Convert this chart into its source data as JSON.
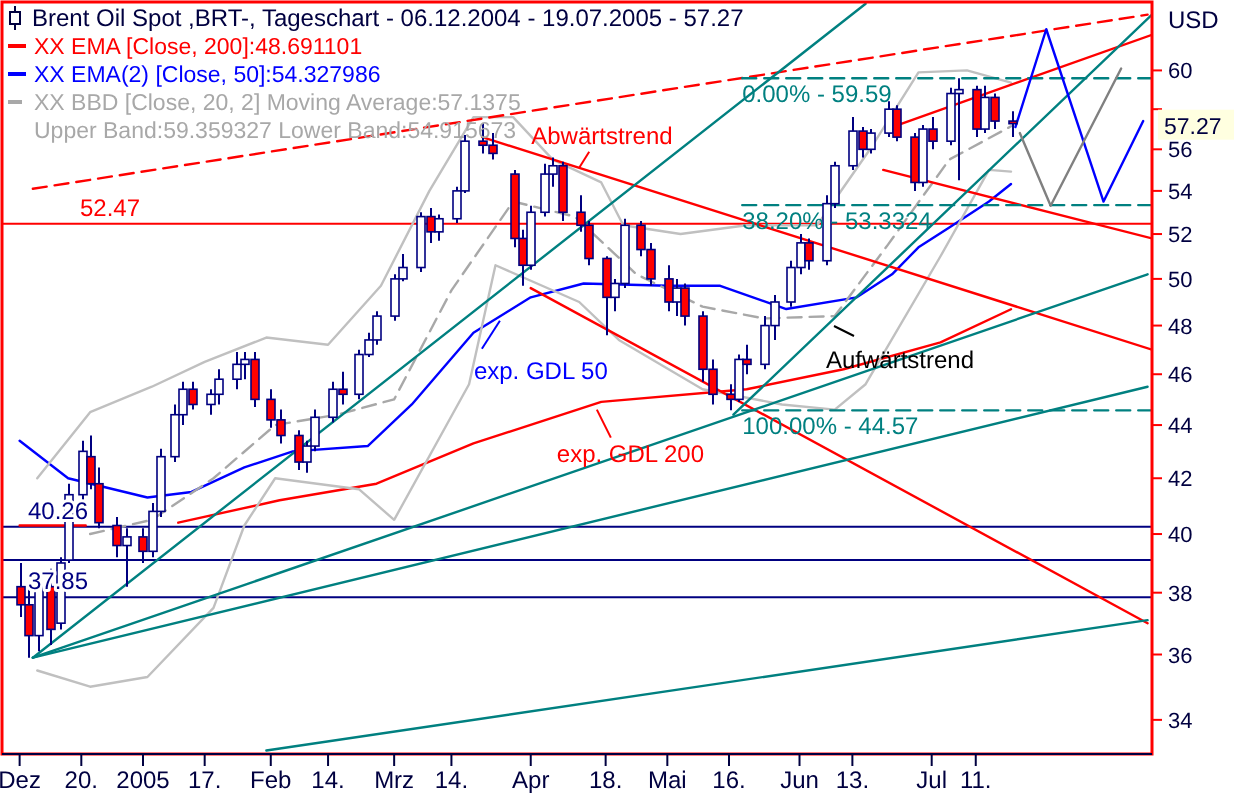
{
  "chart_data": {
    "type": "candlestick",
    "title": "Brent Oil Spot ,BRT-, Tageschart - 06.12.2004 - 19.07.2005 - 57.27",
    "ylabel": "USD",
    "color": "#000080",
    "log": true,
    "legend": "top left",
    "xlim": [
      "2004-12-02",
      "2005-08-20"
    ],
    "ylim": [
      33.0,
      63.7
    ],
    "xticks": [
      {
        "value": "2004-12-06",
        "label": "Dez"
      },
      {
        "value": "2004-12-20",
        "label": "20."
      },
      {
        "value": "2005-01-03",
        "label": "2005"
      },
      {
        "value": "2005-01-17",
        "label": "17."
      },
      {
        "value": "2005-02-01",
        "label": "Feb"
      },
      {
        "value": "2005-02-14",
        "label": "14."
      },
      {
        "value": "2005-03-01",
        "label": "Mrz"
      },
      {
        "value": "2005-03-14",
        "label": "14."
      },
      {
        "value": "2005-04-01",
        "label": "Apr"
      },
      {
        "value": "2005-04-18",
        "label": "18."
      },
      {
        "value": "2005-05-02",
        "label": "Mai"
      },
      {
        "value": "2005-05-16",
        "label": "16."
      },
      {
        "value": "2005-06-01",
        "label": "Jun"
      },
      {
        "value": "2005-06-13",
        "label": "13."
      },
      {
        "value": "2005-07-01",
        "label": "Jul"
      },
      {
        "value": "2005-07-11",
        "label": "11."
      }
    ],
    "yticks": [
      34,
      36,
      38,
      40,
      42,
      44,
      46,
      48,
      50,
      52,
      54,
      56,
      {
        "value": 58,
        "label": null
      },
      60
    ],
    "x": [
      "2004-12-06",
      "2004-12-08",
      "2004-12-10",
      "2004-12-13",
      "2004-12-15",
      "2004-12-17",
      "2004-12-20",
      "2004-12-22",
      "2004-12-24",
      "2004-12-28",
      "2004-12-30",
      "2005-01-03",
      "2005-01-05",
      "2005-01-07",
      "2005-01-10",
      "2005-01-12",
      "2005-01-14",
      "2005-01-18",
      "2005-01-20",
      "2005-01-24",
      "2005-01-26",
      "2005-01-28",
      "2005-02-01",
      "2005-02-03",
      "2005-02-07",
      "2005-02-09",
      "2005-02-11",
      "2005-02-15",
      "2005-02-17",
      "2005-02-21",
      "2005-02-23",
      "2005-02-25",
      "2005-03-01",
      "2005-03-03",
      "2005-03-07",
      "2005-03-09",
      "2005-03-11",
      "2005-03-15",
      "2005-03-17",
      "2005-03-21",
      "2005-03-23",
      "2005-03-28",
      "2005-03-30",
      "2005-04-01",
      "2005-04-04",
      "2005-04-06",
      "2005-04-08",
      "2005-04-12",
      "2005-04-14",
      "2005-04-18",
      "2005-04-20",
      "2005-04-22",
      "2005-04-26",
      "2005-04-28",
      "2005-05-02",
      "2005-05-04",
      "2005-05-06",
      "2005-05-10",
      "2005-05-12",
      "2005-05-16",
      "2005-05-18",
      "2005-05-20",
      "2005-05-24",
      "2005-05-26",
      "2005-05-30",
      "2005-06-01",
      "2005-06-03",
      "2005-06-07",
      "2005-06-09",
      "2005-06-13",
      "2005-06-15",
      "2005-06-17",
      "2005-06-21",
      "2005-06-23",
      "2005-06-27",
      "2005-06-29",
      "2005-07-01",
      "2005-07-05",
      "2005-07-07",
      "2005-07-11",
      "2005-07-13",
      "2005-07-15",
      "2005-07-19"
    ],
    "ohlc": [
      [
        38.2,
        39.0,
        37.2,
        37.6
      ],
      [
        37.6,
        38.2,
        35.9,
        36.6
      ],
      [
        36.6,
        38.6,
        36.1,
        38.2
      ],
      [
        38.2,
        38.8,
        36.3,
        36.8
      ],
      [
        37.0,
        39.2,
        36.8,
        39.0
      ],
      [
        39.1,
        41.8,
        39.0,
        41.4
      ],
      [
        41.4,
        43.4,
        41.2,
        43.0
      ],
      [
        42.8,
        43.6,
        41.6,
        41.8
      ],
      [
        41.8,
        42.4,
        40.2,
        40.4
      ],
      [
        40.3,
        40.6,
        39.2,
        39.6
      ],
      [
        39.6,
        40.2,
        38.2,
        39.9
      ],
      [
        39.9,
        40.2,
        39.0,
        39.4
      ],
      [
        39.4,
        41.1,
        39.2,
        40.8
      ],
      [
        40.8,
        43.1,
        40.6,
        42.8
      ],
      [
        42.8,
        44.8,
        42.6,
        44.4
      ],
      [
        44.4,
        45.7,
        44.0,
        45.4
      ],
      [
        45.4,
        45.7,
        44.6,
        44.8
      ],
      [
        44.8,
        45.4,
        44.4,
        45.2
      ],
      [
        45.2,
        46.2,
        44.8,
        45.8
      ],
      [
        45.8,
        46.9,
        45.4,
        46.4
      ],
      [
        46.4,
        46.9,
        45.8,
        46.6
      ],
      [
        46.6,
        46.9,
        44.7,
        45.0
      ],
      [
        45.0,
        45.4,
        43.9,
        44.2
      ],
      [
        44.2,
        44.6,
        43.3,
        43.6
      ],
      [
        43.6,
        43.8,
        42.3,
        42.6
      ],
      [
        42.6,
        43.4,
        42.2,
        43.2
      ],
      [
        43.2,
        44.6,
        43.0,
        44.3
      ],
      [
        44.3,
        45.7,
        44.1,
        45.4
      ],
      [
        45.4,
        46.1,
        44.8,
        45.2
      ],
      [
        45.2,
        47.0,
        45.0,
        46.8
      ],
      [
        46.8,
        47.7,
        46.7,
        47.4
      ],
      [
        47.4,
        48.6,
        47.2,
        48.4
      ],
      [
        48.4,
        50.2,
        48.2,
        50.0
      ],
      [
        50.0,
        51.1,
        49.9,
        50.5
      ],
      [
        50.5,
        53.0,
        50.3,
        52.8
      ],
      [
        52.8,
        53.2,
        51.6,
        52.1
      ],
      [
        52.1,
        52.9,
        51.7,
        52.7
      ],
      [
        52.7,
        54.2,
        52.5,
        54.0
      ],
      [
        54.0,
        56.7,
        53.9,
        56.4
      ],
      [
        56.4,
        57.3,
        55.8,
        56.2
      ],
      [
        56.2,
        56.8,
        55.5,
        55.8
      ],
      [
        54.8,
        55.0,
        51.4,
        51.8
      ],
      [
        51.8,
        52.2,
        49.7,
        50.6
      ],
      [
        50.6,
        53.3,
        50.4,
        53.0
      ],
      [
        53.0,
        55.3,
        52.8,
        54.8
      ],
      [
        54.8,
        55.6,
        54.2,
        55.2
      ],
      [
        55.2,
        55.4,
        52.6,
        53.0
      ],
      [
        53.0,
        53.8,
        52.1,
        52.4
      ],
      [
        52.4,
        52.6,
        50.6,
        50.9
      ],
      [
        50.9,
        51.0,
        47.6,
        49.2
      ],
      [
        49.2,
        50.0,
        48.6,
        49.8
      ],
      [
        49.8,
        52.7,
        49.6,
        52.4
      ],
      [
        52.4,
        52.6,
        51.0,
        51.3
      ],
      [
        51.3,
        51.6,
        49.7,
        50.0
      ],
      [
        50.0,
        50.6,
        48.6,
        49.0
      ],
      [
        49.0,
        50.0,
        48.4,
        49.6
      ],
      [
        49.6,
        49.8,
        48.0,
        48.4
      ],
      [
        48.4,
        48.6,
        45.7,
        46.2
      ],
      [
        46.2,
        46.6,
        44.8,
        45.2
      ],
      [
        45.2,
        45.6,
        44.57,
        45.0
      ],
      [
        45.0,
        46.8,
        44.9,
        46.6
      ],
      [
        46.6,
        47.2,
        46.0,
        46.4
      ],
      [
        46.4,
        48.4,
        46.2,
        48.0
      ],
      [
        48.0,
        49.3,
        47.4,
        49.0
      ],
      [
        49.0,
        50.8,
        48.8,
        50.5
      ],
      [
        50.5,
        52.0,
        50.2,
        51.6
      ],
      [
        51.6,
        51.8,
        50.4,
        50.8
      ],
      [
        50.8,
        53.8,
        50.6,
        53.4
      ],
      [
        53.4,
        55.4,
        53.2,
        55.2
      ],
      [
        55.2,
        57.6,
        55.0,
        56.9
      ],
      [
        56.9,
        57.1,
        55.6,
        56.0
      ],
      [
        56.0,
        57.0,
        55.8,
        56.8
      ],
      [
        56.8,
        58.4,
        56.6,
        58.0
      ],
      [
        58.0,
        58.2,
        56.4,
        56.6
      ],
      [
        56.6,
        56.8,
        54.0,
        54.4
      ],
      [
        54.4,
        57.2,
        54.2,
        57.0
      ],
      [
        57.0,
        57.6,
        56.0,
        56.4
      ],
      [
        56.4,
        59.1,
        56.2,
        58.8
      ],
      [
        58.8,
        59.59,
        54.5,
        59.0
      ],
      [
        59.0,
        59.2,
        56.6,
        57.0
      ],
      [
        57.0,
        59.2,
        56.8,
        58.6
      ],
      [
        58.6,
        58.8,
        57.0,
        57.4
      ],
      [
        57.4,
        57.9,
        56.6,
        57.27
      ]
    ],
    "series": [
      {
        "type": "line",
        "name": "XX EMA [Close, 200]:48.691101",
        "color": "#ff0000",
        "x": [
          "2004-12-06",
          "2004-12-21",
          "2005-01-01",
          "2005-01-11",
          "2005-02-03",
          "2005-02-25",
          "2005-03-19",
          "2005-04-17",
          "2005-05-20",
          "2005-06-11",
          "2005-07-03",
          "2005-07-19"
        ],
        "values": [
          40.3,
          40.3,
          null,
          40.4,
          41.2,
          41.8,
          43.3,
          44.9,
          45.4,
          46.2,
          47.3,
          48.691101
        ]
      },
      {
        "type": "line",
        "name": "XX EMA(2) [Close, 50]:54.327986",
        "color": "#0000ff",
        "x": [
          "2004-12-06",
          "2004-12-17",
          "2005-01-04",
          "2005-01-14",
          "2005-01-26",
          "2005-02-06",
          "2005-02-23",
          "2005-03-05",
          "2005-03-19",
          "2005-04-01",
          "2005-04-13",
          "2005-05-02",
          "2005-05-14",
          "2005-05-29",
          "2005-06-14",
          "2005-06-22",
          "2005-06-28",
          "2005-07-05",
          "2005-07-14",
          "2005-07-19"
        ],
        "values": [
          43.4,
          42.0,
          41.3,
          41.5,
          42.4,
          43.0,
          43.2,
          44.8,
          47.7,
          49.2,
          49.8,
          49.7,
          49.7,
          48.7,
          49.2,
          50.2,
          51.4,
          52.3,
          53.5,
          54.327986
        ]
      },
      {
        "type": "line",
        "name": "XX BBD [Close, 20, 2] Moving Average:57.1375 Upper Band:59.359327 Lower Band:54.915673",
        "color": "#a8a8a8",
        "line_style": "dashed",
        "x": [
          "2004-12-22",
          "2005-01-05",
          "2005-01-19",
          "2005-02-02",
          "2005-02-16",
          "2005-03-01",
          "2005-03-14",
          "2005-03-28",
          "2005-04-11",
          "2005-04-25",
          "2005-05-10",
          "2005-05-24",
          "2005-06-09",
          "2005-06-21",
          "2005-07-05",
          "2005-07-19"
        ],
        "values": [
          40.0,
          40.5,
          42.0,
          44.0,
          44.4,
          45.0,
          49.5,
          53.5,
          52.8,
          50.2,
          48.8,
          48.3,
          48.4,
          51.5,
          55.5,
          57.1375
        ]
      },
      {
        "type": "line",
        "color": "#c0c0c0",
        "x": [
          "2004-12-10",
          "2004-12-22",
          "2005-01-05",
          "2005-01-17",
          "2005-01-31",
          "2005-02-14",
          "2005-02-26",
          "2005-03-09",
          "2005-03-19",
          "2005-03-28",
          "2005-04-06",
          "2005-04-17",
          "2005-04-22",
          "2005-05-05",
          "2005-05-20",
          "2005-06-05",
          "2005-06-17",
          "2005-06-28",
          "2005-07-09",
          "2005-07-19"
        ],
        "values": [
          42.0,
          44.5,
          45.5,
          46.5,
          47.5,
          47.2,
          49.7,
          54.0,
          57.6,
          57.6,
          55.5,
          54.4,
          52.4,
          52.0,
          52.4,
          52.4,
          56.0,
          59.9,
          60.0,
          59.359327
        ]
      },
      {
        "type": "line",
        "color": "#c0c0c0",
        "x": [
          "2004-12-10",
          "2004-12-22",
          "2005-01-04",
          "2005-01-19",
          "2005-01-26",
          "2005-02-02",
          "2005-02-21",
          "2005-03-01",
          "2005-03-18",
          "2005-03-24",
          "2005-04-12",
          "2005-04-21",
          "2005-05-10",
          "2005-05-28",
          "2005-06-09",
          "2005-06-16",
          "2005-07-03",
          "2005-07-14",
          "2005-07-19"
        ],
        "values": [
          35.5,
          35.0,
          35.3,
          37.5,
          40.3,
          42.0,
          41.6,
          40.5,
          45.6,
          50.6,
          49.0,
          47.4,
          45.4,
          44.8,
          44.6,
          45.6,
          51.0,
          55.0,
          54.915673
        ]
      },
      {
        "type": "line",
        "color": "#ff0000",
        "line_style": "dashed",
        "x": [
          "2004-12-09",
          "2005-08-19"
        ],
        "values": [
          54.1,
          63.0
        ]
      },
      {
        "type": "line",
        "color": "#ff0000",
        "x": [
          "2005-06-22",
          "2005-08-20"
        ],
        "values": [
          57.1,
          61.9
        ]
      },
      {
        "type": "line",
        "color": "#ff0000",
        "x": [
          "2005-03-21",
          "2005-08-20"
        ],
        "values": [
          56.6,
          47.0
        ]
      },
      {
        "type": "line",
        "color": "#ff0000",
        "x": [
          "2005-04-01",
          "2005-08-19"
        ],
        "values": [
          49.6,
          37.0
        ]
      },
      {
        "type": "line",
        "color": "#ff0000",
        "x": [
          "2005-06-20",
          "2005-08-20"
        ],
        "values": [
          55.0,
          51.8
        ]
      },
      {
        "type": "line",
        "color": "#008080",
        "x": [
          "2004-12-09",
          "2005-06-16"
        ],
        "values": [
          35.9,
          63.6
        ]
      },
      {
        "type": "line",
        "color": "#008080",
        "x": [
          "2004-12-09",
          "2005-08-19"
        ],
        "values": [
          35.9,
          50.2
        ]
      },
      {
        "type": "line",
        "color": "#008080",
        "x": [
          "2004-12-09",
          "2005-08-19"
        ],
        "values": [
          35.9,
          45.5
        ]
      },
      {
        "type": "line",
        "color": "#008080",
        "x": [
          "2005-05-17",
          "2005-08-20"
        ],
        "values": [
          44.4,
          63.0
        ]
      },
      {
        "type": "line",
        "color": "#008080",
        "x": [
          "2005-01-31",
          "2005-08-19"
        ],
        "values": [
          33.1,
          37.1
        ]
      },
      {
        "type": "line",
        "color": "#008080",
        "line_style": "dashed",
        "x": [
          "2005-05-19",
          "2005-08-20"
        ],
        "values": [
          59.59,
          59.59
        ]
      },
      {
        "type": "line",
        "color": "#008080",
        "line_style": "dashed",
        "x": [
          "2005-05-19",
          "2005-08-20"
        ],
        "values": [
          53.3324,
          53.3324
        ]
      },
      {
        "type": "line",
        "color": "#008080",
        "line_style": "dashed",
        "x": [
          "2005-05-19",
          "2005-08-20"
        ],
        "values": [
          44.57,
          44.57
        ]
      },
      {
        "type": "line",
        "color": "#0000ff",
        "x": [
          "2005-07-20",
          "2005-07-27",
          "2005-08-09",
          "2005-08-18"
        ],
        "values": [
          57.1,
          62.2,
          53.5,
          57.4
        ]
      },
      {
        "type": "line",
        "color": "#808080",
        "x": [
          "2005-07-21",
          "2005-07-28",
          "2005-08-13"
        ],
        "values": [
          56.8,
          53.3,
          60.1
        ]
      }
    ],
    "ref_lines": [
      {
        "axis": "y",
        "value": 52.47,
        "label": "52.47",
        "color": "#ff0000"
      },
      {
        "axis": "y",
        "value": 40.26,
        "label": "40.26",
        "color": "#000080"
      },
      {
        "axis": "y",
        "value": 39.1,
        "color": "#000080"
      },
      {
        "axis": "y",
        "value": 37.85,
        "label": "37.85",
        "color": "#000080"
      }
    ],
    "annotations": [
      {
        "text": "Abwärtstrend",
        "x": "2005-04-12",
        "y": 55.1
      },
      "Aufwärtstrend",
      {
        "text": "exp. GDL 50",
        "x": "2005-03-25",
        "y": 48.2
      },
      {
        "text": "exp. GDL 200",
        "x": "2005-04-16",
        "y": 44.6
      },
      {
        "text": "0.00% - 59.59",
        "x": "2005-05-19",
        "y": 59.59
      },
      {
        "text": "38.20% - 53.3324",
        "x": "2005-05-19",
        "y": 53.3324
      },
      {
        "text": "100.00% - 44.57",
        "x": "2005-05-19",
        "y": 44.57
      },
      "57.27"
    ]
  }
}
